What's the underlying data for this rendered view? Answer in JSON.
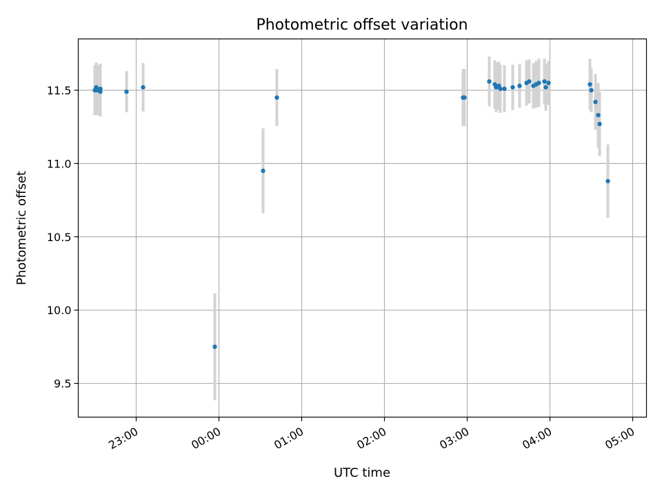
{
  "chart_data": {
    "type": "scatter",
    "title": "Photometric offset variation",
    "xlabel": "UTC time",
    "ylabel": "Photometric offset",
    "x_ticks": [
      "23:00",
      "00:00",
      "01:00",
      "02:00",
      "03:00",
      "04:00",
      "05:00"
    ],
    "y_ticks": [
      "9.5",
      "10.0",
      "10.5",
      "11.0",
      "11.5"
    ],
    "xlim": [
      "22:18",
      "05:10"
    ],
    "ylim": [
      9.27,
      11.85
    ],
    "grid": true,
    "colors": {
      "point": "#1f77b4",
      "errorbar": "#d3d3d3",
      "grid": "#b0b0b0"
    },
    "points": [
      {
        "t": "22:30",
        "y": 11.5,
        "err": 0.17
      },
      {
        "t": "22:31",
        "y": 11.52,
        "err": 0.17
      },
      {
        "t": "22:31",
        "y": 11.5,
        "err": 0.17
      },
      {
        "t": "22:32",
        "y": 11.5,
        "err": 0.17
      },
      {
        "t": "22:33",
        "y": 11.5,
        "err": 0.17
      },
      {
        "t": "22:34",
        "y": 11.51,
        "err": 0.17
      },
      {
        "t": "22:34",
        "y": 11.49,
        "err": 0.17
      },
      {
        "t": "22:53",
        "y": 11.49,
        "err": 0.14
      },
      {
        "t": "23:05",
        "y": 11.52,
        "err": 0.165
      },
      {
        "t": "23:57",
        "y": 9.75,
        "err": 0.365
      },
      {
        "t": "00:32",
        "y": 10.95,
        "err": 0.29
      },
      {
        "t": "00:42",
        "y": 11.45,
        "err": 0.195
      },
      {
        "t": "02:57",
        "y": 11.45,
        "err": 0.195
      },
      {
        "t": "02:58",
        "y": 11.45,
        "err": 0.195
      },
      {
        "t": "03:16",
        "y": 11.56,
        "err": 0.17
      },
      {
        "t": "03:20",
        "y": 11.54,
        "err": 0.165
      },
      {
        "t": "03:21",
        "y": 11.52,
        "err": 0.17
      },
      {
        "t": "03:23",
        "y": 11.53,
        "err": 0.165
      },
      {
        "t": "03:24",
        "y": 11.51,
        "err": 0.165
      },
      {
        "t": "03:27",
        "y": 11.51,
        "err": 0.16
      },
      {
        "t": "03:33",
        "y": 11.52,
        "err": 0.155
      },
      {
        "t": "03:38",
        "y": 11.53,
        "err": 0.15
      },
      {
        "t": "03:43",
        "y": 11.55,
        "err": 0.155
      },
      {
        "t": "03:45",
        "y": 11.56,
        "err": 0.15
      },
      {
        "t": "03:48",
        "y": 11.53,
        "err": 0.155
      },
      {
        "t": "03:50",
        "y": 11.54,
        "err": 0.16
      },
      {
        "t": "03:52",
        "y": 11.55,
        "err": 0.165
      },
      {
        "t": "03:56",
        "y": 11.56,
        "err": 0.155
      },
      {
        "t": "03:57",
        "y": 11.52,
        "err": 0.16
      },
      {
        "t": "03:59",
        "y": 11.55,
        "err": 0.15
      },
      {
        "t": "04:29",
        "y": 11.54,
        "err": 0.175
      },
      {
        "t": "04:30",
        "y": 11.5,
        "err": 0.15
      },
      {
        "t": "04:33",
        "y": 11.42,
        "err": 0.19
      },
      {
        "t": "04:35",
        "y": 11.33,
        "err": 0.22
      },
      {
        "t": "04:36",
        "y": 11.27,
        "err": 0.22
      },
      {
        "t": "04:42",
        "y": 10.88,
        "err": 0.25
      }
    ]
  }
}
